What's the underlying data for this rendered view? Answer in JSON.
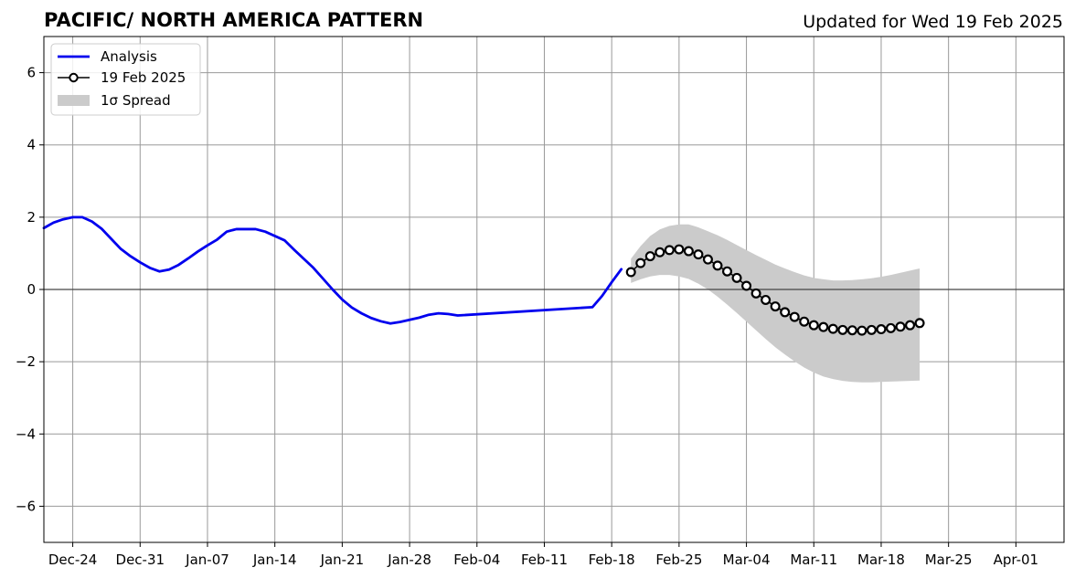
{
  "chart_data": {
    "type": "line",
    "title": "PACIFIC/ NORTH AMERICA PATTERN",
    "subtitle": "Updated for Wed 19 Feb 2025",
    "xlabel": "",
    "ylabel": "",
    "xlim": [
      "2024-12-21",
      "2025-04-06"
    ],
    "ylim": [
      -7,
      7
    ],
    "grid": true,
    "legend_position": "top-left",
    "x_ticks": [
      {
        "date": "2024-12-24",
        "label": "Dec-24"
      },
      {
        "date": "2024-12-31",
        "label": "Dec-31"
      },
      {
        "date": "2025-01-07",
        "label": "Jan-07"
      },
      {
        "date": "2025-01-14",
        "label": "Jan-14"
      },
      {
        "date": "2025-01-21",
        "label": "Jan-21"
      },
      {
        "date": "2025-01-28",
        "label": "Jan-28"
      },
      {
        "date": "2025-02-04",
        "label": "Feb-04"
      },
      {
        "date": "2025-02-11",
        "label": "Feb-11"
      },
      {
        "date": "2025-02-18",
        "label": "Feb-18"
      },
      {
        "date": "2025-02-25",
        "label": "Feb-25"
      },
      {
        "date": "2025-03-04",
        "label": "Mar-04"
      },
      {
        "date": "2025-03-11",
        "label": "Mar-11"
      },
      {
        "date": "2025-03-18",
        "label": "Mar-18"
      },
      {
        "date": "2025-03-25",
        "label": "Mar-25"
      },
      {
        "date": "2025-04-01",
        "label": "Apr-01"
      }
    ],
    "y_ticks": [
      {
        "value": 6,
        "label": "6"
      },
      {
        "value": 4,
        "label": "4"
      },
      {
        "value": 2,
        "label": "2"
      },
      {
        "value": 0,
        "label": "0"
      },
      {
        "value": -2,
        "label": "−2"
      },
      {
        "value": -4,
        "label": "−4"
      },
      {
        "value": -6,
        "label": "−6"
      }
    ],
    "legend": [
      {
        "label": "Analysis",
        "style": "line"
      },
      {
        "label": "19 Feb 2025",
        "style": "line-marker"
      },
      {
        "label": "1σ Spread",
        "style": "patch"
      }
    ],
    "colors": {
      "analysis": "#0000ee",
      "forecast": "#000000",
      "spread": "#cbcbcb",
      "grid": "#999999"
    },
    "series": [
      {
        "name": "Analysis",
        "x": [
          "2024-12-21",
          "2024-12-22",
          "2024-12-23",
          "2024-12-24",
          "2024-12-25",
          "2024-12-26",
          "2024-12-27",
          "2024-12-28",
          "2024-12-29",
          "2024-12-30",
          "2024-12-31",
          "2025-01-01",
          "2025-01-02",
          "2025-01-03",
          "2025-01-04",
          "2025-01-05",
          "2025-01-06",
          "2025-01-07",
          "2025-01-08",
          "2025-01-09",
          "2025-01-10",
          "2025-01-11",
          "2025-01-12",
          "2025-01-13",
          "2025-01-14",
          "2025-01-15",
          "2025-01-16",
          "2025-01-17",
          "2025-01-18",
          "2025-01-19",
          "2025-01-20",
          "2025-01-21",
          "2025-01-22",
          "2025-01-23",
          "2025-01-24",
          "2025-01-25",
          "2025-01-26",
          "2025-01-27",
          "2025-01-28",
          "2025-01-29",
          "2025-01-30",
          "2025-01-31",
          "2025-02-01",
          "2025-02-02",
          "2025-02-16",
          "2025-02-17",
          "2025-02-18",
          "2025-02-19"
        ],
        "values": [
          1.7,
          1.85,
          1.94,
          2.0,
          2.0,
          1.88,
          1.68,
          1.4,
          1.12,
          0.92,
          0.75,
          0.6,
          0.5,
          0.55,
          0.68,
          0.86,
          1.05,
          1.22,
          1.38,
          1.6,
          1.67,
          1.67,
          1.67,
          1.6,
          1.48,
          1.36,
          1.1,
          0.85,
          0.6,
          0.3,
          0.0,
          -0.28,
          -0.5,
          -0.66,
          -0.79,
          -0.88,
          -0.94,
          -0.9,
          -0.84,
          -0.78,
          -0.7,
          -0.66,
          -0.68,
          -0.72,
          -0.49,
          -0.18,
          0.2,
          0.56
        ]
      },
      {
        "name": "19 Feb 2025",
        "x": [
          "2025-02-20",
          "2025-02-21",
          "2025-02-22",
          "2025-02-23",
          "2025-02-24",
          "2025-02-25",
          "2025-02-26",
          "2025-02-27",
          "2025-02-28",
          "2025-03-01",
          "2025-03-02",
          "2025-03-03",
          "2025-03-04",
          "2025-03-05",
          "2025-03-06",
          "2025-03-07",
          "2025-03-08",
          "2025-03-09",
          "2025-03-10",
          "2025-03-11",
          "2025-03-12",
          "2025-03-13",
          "2025-03-14",
          "2025-03-15",
          "2025-03-16",
          "2025-03-17",
          "2025-03-18",
          "2025-03-19",
          "2025-03-20",
          "2025-03-21",
          "2025-03-22"
        ],
        "values": [
          0.48,
          0.73,
          0.92,
          1.03,
          1.09,
          1.11,
          1.06,
          0.97,
          0.83,
          0.66,
          0.5,
          0.32,
          0.1,
          -0.11,
          -0.29,
          -0.47,
          -0.63,
          -0.76,
          -0.89,
          -0.99,
          -1.04,
          -1.09,
          -1.12,
          -1.13,
          -1.14,
          -1.12,
          -1.1,
          -1.07,
          -1.03,
          -0.99,
          -0.93
        ]
      }
    ],
    "spread": {
      "name": "1σ Spread",
      "x": [
        "2025-02-20",
        "2025-02-21",
        "2025-02-22",
        "2025-02-23",
        "2025-02-24",
        "2025-02-25",
        "2025-02-26",
        "2025-02-27",
        "2025-02-28",
        "2025-03-01",
        "2025-03-02",
        "2025-03-03",
        "2025-03-04",
        "2025-03-05",
        "2025-03-06",
        "2025-03-07",
        "2025-03-08",
        "2025-03-09",
        "2025-03-10",
        "2025-03-11",
        "2025-03-12",
        "2025-03-13",
        "2025-03-14",
        "2025-03-15",
        "2025-03-16",
        "2025-03-17",
        "2025-03-18",
        "2025-03-19",
        "2025-03-20",
        "2025-03-21",
        "2025-03-22"
      ],
      "upper": [
        0.85,
        1.2,
        1.48,
        1.66,
        1.76,
        1.8,
        1.8,
        1.72,
        1.61,
        1.5,
        1.37,
        1.23,
        1.09,
        0.95,
        0.82,
        0.69,
        0.58,
        0.48,
        0.39,
        0.32,
        0.28,
        0.25,
        0.25,
        0.26,
        0.28,
        0.31,
        0.35,
        0.4,
        0.46,
        0.52,
        0.58
      ],
      "lower": [
        0.18,
        0.28,
        0.36,
        0.4,
        0.4,
        0.36,
        0.29,
        0.16,
        0.0,
        -0.2,
        -0.42,
        -0.65,
        -0.89,
        -1.13,
        -1.37,
        -1.6,
        -1.8,
        -1.99,
        -2.16,
        -2.3,
        -2.41,
        -2.48,
        -2.53,
        -2.56,
        -2.57,
        -2.57,
        -2.56,
        -2.55,
        -2.54,
        -2.53,
        -2.52
      ]
    }
  }
}
